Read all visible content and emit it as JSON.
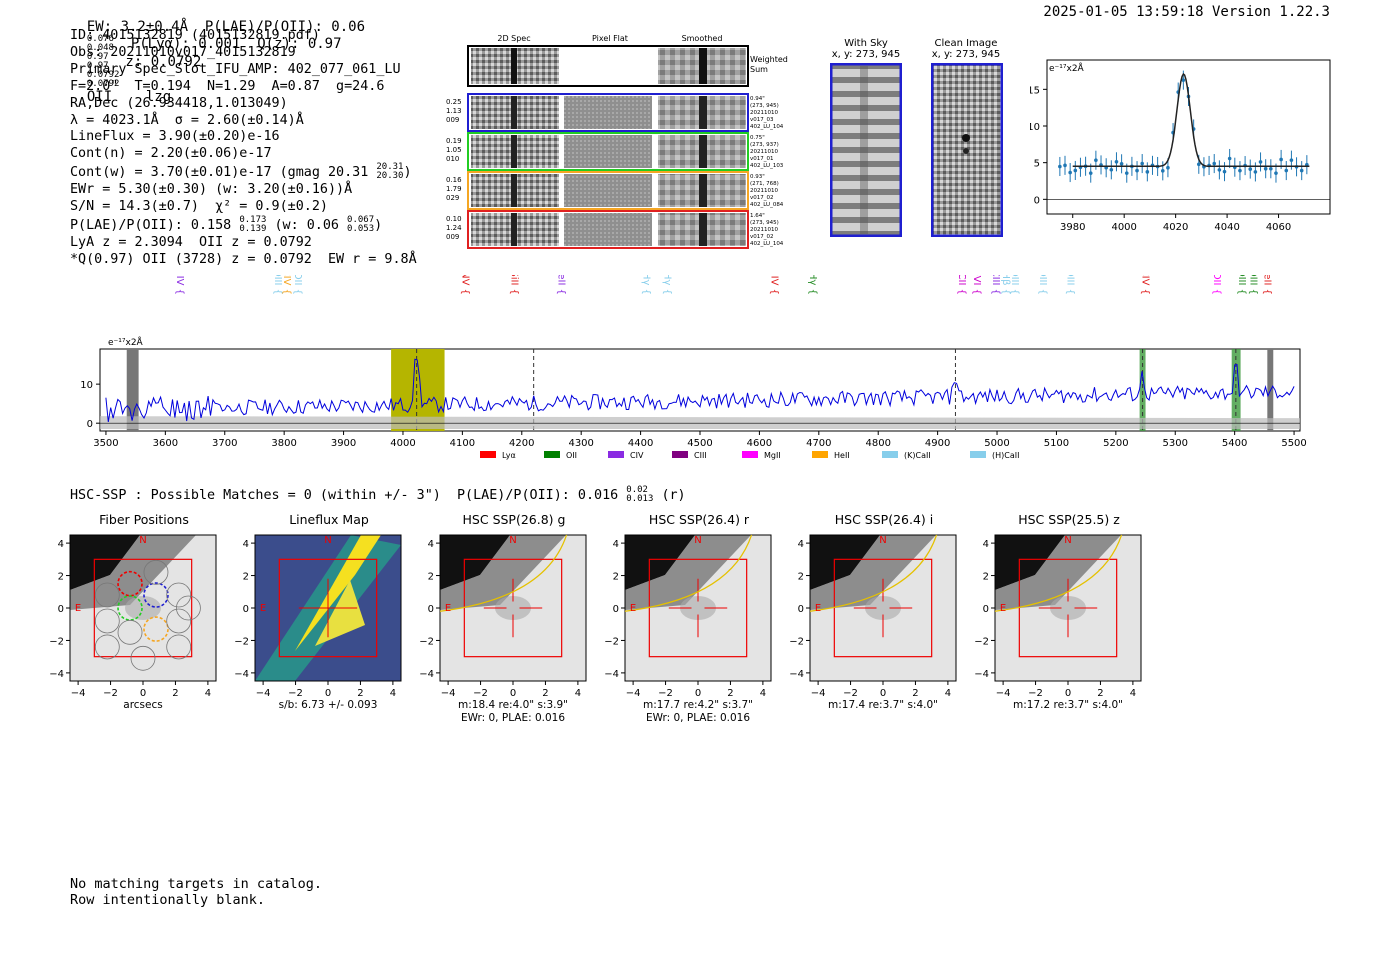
{
  "header": {
    "ew_text": "EW: 3.2±0.4Å",
    "plae_text": "P(LAE)/P(OII): 0.06",
    "plae_hi": "0.076",
    "plae_lo": "0.048",
    "plya_text": "P(Lyα): 0.001",
    "qz_text": "Q(z): 0.97",
    "qz_hi": "0.97",
    "qz_lo": "0.97",
    "z_text": "z: 0.0792",
    "z_hi": "0.0792",
    "z_lo": "0.0792",
    "z_line": "OII",
    "flags": "lzg",
    "timestamp": "2025-01-05 13:59:18",
    "version": "Version 1.22.3"
  },
  "info": [
    "ID: 4015132819 (4015132819.pdf)",
    "Obs: 20211010v017_4015132819",
    "Primary Spec_Slot_IFU_AMP: 402_077_061_LU",
    "F=2.0\"  T=0.194  N=1.29  A=0.87  g=24.6",
    "RA,Dec (26.934418,1.013049)",
    "λ = 4023.1Å  σ = 2.60(±0.14)Å",
    "LineFlux = 3.90(±0.20)e-16",
    "Cont(n) = 2.20(±0.06)e-17",
    "Cont(w) = 3.70(±0.01)e-17 (gmag 20.31",
    "EWr = 5.30(±0.30) (w: 3.20(±0.16))Å",
    "S/N = 14.3(±0.7)  χ² = 0.9(±0.2)",
    "P(LAE)/P(OII): 0.158",
    "LyA z = 2.3094  OII z = 0.0792",
    "*Q(0.97) OII (3728) z = 0.0792  EW r = 9.8Å"
  ],
  "info_fracs": {
    "gmag_hi": "20.31",
    "gmag_lo": "20.30",
    "plae_hi": "0.173",
    "plae_lo": "0.139",
    "plae_w_text": "(w: 0.06",
    "plae_w_hi": "0.067",
    "plae_w_lo": "0.053"
  },
  "cutouts": {
    "col_titles": [
      "2D Spec",
      "Pixel Flat",
      "Smoothed"
    ],
    "weighted_label": "Weighted Sum",
    "rows": [
      {
        "left": [
          "0.25",
          "1.13",
          "009"
        ],
        "right": [
          "0.94\"",
          "(273, 945)",
          "20211010",
          "v017_03",
          "402_LU_104"
        ],
        "color": "#1f1fd0"
      },
      {
        "left": [
          "0.19",
          "1.05",
          "010"
        ],
        "right": [
          "0.75\"",
          "(273, 937)",
          "20211010",
          "v017_01",
          "402_LU_103"
        ],
        "color": "#22cc22"
      },
      {
        "left": [
          "0.16",
          "1.79",
          "029"
        ],
        "right": [
          "0.93\"",
          "(271, 768)",
          "20211010",
          "v017_02",
          "402_LU_084"
        ],
        "color": "#f5a623"
      },
      {
        "left": [
          "0.10",
          "1.24",
          "009"
        ],
        "right": [
          "1.64\"",
          "(273, 945)",
          "20211010",
          "v017_02",
          "402_LU_104"
        ],
        "color": "#e02020"
      }
    ]
  },
  "sky": {
    "with_sky_title": "With Sky",
    "with_sky_xy": "x, y: 273, 945",
    "clean_title": "Clean Image",
    "clean_xy": "x, y: 273, 945"
  },
  "zoom_plot": {
    "unit_label": "e⁻¹⁷x2Å",
    "xticks": [
      "3980",
      "4000",
      "4020",
      "4040",
      "4060"
    ],
    "yticks": [
      "0",
      "5",
      "10",
      "15"
    ]
  },
  "full_spectrum": {
    "unit_label": "e⁻¹⁷x2Å",
    "xticks": [
      "3500",
      "3600",
      "3700",
      "3800",
      "3900",
      "4000",
      "4100",
      "4200",
      "4300",
      "4400",
      "4500",
      "4600",
      "4700",
      "4800",
      "4900",
      "5000",
      "5100",
      "5200",
      "5300",
      "5400",
      "5500"
    ],
    "yticks": [
      "0",
      "10"
    ],
    "lines": [
      {
        "label": "SiIV",
        "color": "#8a2be2"
      },
      {
        "label": "OIII",
        "color": "#87ceeb"
      },
      {
        "label": "CIV",
        "color": "#f5a623"
      },
      {
        "label": "OII",
        "color": "#87ceeb"
      },
      {
        "label": "NV",
        "color": "#e02020"
      },
      {
        "label": "SiII",
        "color": "#e02020"
      },
      {
        "label": "HeII",
        "color": "#8a2be2"
      },
      {
        "label": "Hγ",
        "color": "#87ceeb"
      },
      {
        "label": "Hγ",
        "color": "#87ceeb"
      },
      {
        "label": "SiIV",
        "color": "#e02020"
      },
      {
        "label": "CIII",
        "color": "#f5a623"
      },
      {
        "label": "Hγ",
        "color": "#228b22"
      },
      {
        "label": "CII",
        "color": "#cc00cc"
      },
      {
        "label": "Hβ",
        "color": "#87ceeb"
      },
      {
        "label": "NeVI",
        "color": "#cc00cc"
      },
      {
        "label": "CIII",
        "color": "#8a2be2"
      },
      {
        "label": "Hβ",
        "color": "#87ceeb"
      },
      {
        "label": "OIII",
        "color": "#87ceeb"
      },
      {
        "label": "OIII",
        "color": "#87ceeb"
      },
      {
        "label": "OIII",
        "color": "#87ceeb"
      },
      {
        "label": "OIII",
        "color": "#87ceeb"
      },
      {
        "label": "CIV",
        "color": "#e02020"
      },
      {
        "label": "Hβ",
        "color": "#228b22"
      },
      {
        "label": "OII",
        "color": "#ff00ff"
      },
      {
        "label": "OIII",
        "color": "#228b22"
      },
      {
        "label": "OIII",
        "color": "#228b22"
      },
      {
        "label": "HeII",
        "color": "#e02020"
      }
    ],
    "legend": [
      {
        "label": "Lyα",
        "color": "#ff0000"
      },
      {
        "label": "OII",
        "color": "#008000"
      },
      {
        "label": "CIV",
        "color": "#8a2be2"
      },
      {
        "label": "CIII",
        "color": "#800080"
      },
      {
        "label": "MgII",
        "color": "#ff00ff"
      },
      {
        "label": "HeII",
        "color": "#ffa500"
      },
      {
        "label": "(K)CaII",
        "color": "#87ceeb"
      },
      {
        "label": "(H)CaII",
        "color": "#87ceeb"
      }
    ]
  },
  "hsc": {
    "line": "HSC-SSP : Possible Matches = 0 (within +/- 3\")  P(LAE)/P(OII): 0.016",
    "frac_hi": "0.02",
    "frac_lo": "0.013",
    "band": "(r)",
    "panels": [
      {
        "title": "Fiber Positions",
        "captions": [
          "arcsecs"
        ]
      },
      {
        "title": "Lineflux Map",
        "captions": [
          "s/b: 6.73 +/- 0.093"
        ]
      },
      {
        "title": "HSC SSP(26.8) g",
        "captions": [
          "m:18.4  re:4.0\"  s:3.9\"",
          "EWr: 0, PLAE: 0.016"
        ]
      },
      {
        "title": "HSC SSP(26.4) r",
        "captions": [
          "m:17.7  re:4.2\"  s:3.7\"",
          "EWr: 0, PLAE: 0.016"
        ]
      },
      {
        "title": "HSC SSP(26.4) i",
        "captions": [
          "m:17.4  re:3.7\"  s:4.0\""
        ]
      },
      {
        "title": "HSC SSP(25.5) z",
        "captions": [
          "m:17.2  re:3.7\"  s:4.0\""
        ]
      }
    ],
    "ticks": [
      "−4",
      "−2",
      "0",
      "2",
      "4"
    ],
    "n_label": "N",
    "e_label": "E"
  },
  "footer": [
    "No matching targets in catalog.",
    "Row intentionally blank."
  ]
}
